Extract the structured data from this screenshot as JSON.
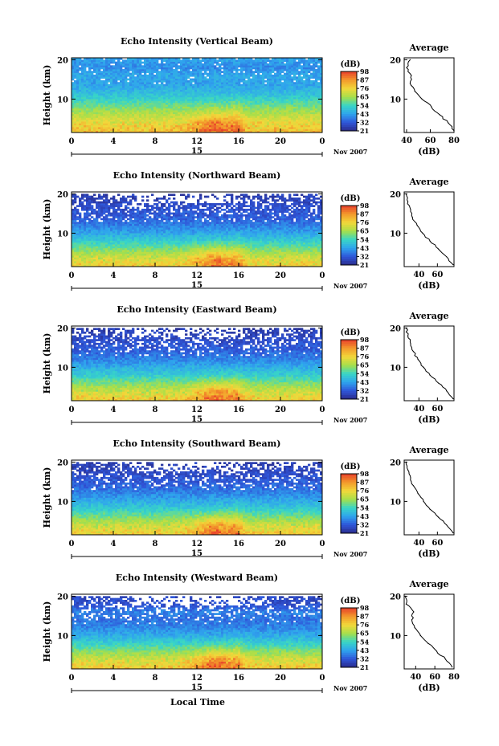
{
  "figure": {
    "xaxis_title": "Local Time",
    "date_label": "Nov 2007",
    "colorbar_unit": "(dB)",
    "average_title": "Average",
    "average_xlabel": "(dB)"
  },
  "chart_data": [
    {
      "type": "heatmap",
      "title": "Echo Intensity (Vertical Beam)",
      "ylabel": "Height (km)",
      "xlabel": "",
      "x_ticks": [
        "0",
        "4",
        "8",
        "12",
        "16",
        "20",
        "0"
      ],
      "day_marker": "15",
      "xlim": [
        0,
        24
      ],
      "ylim": [
        1.5,
        20.5
      ],
      "y_ticks": [
        10,
        20
      ],
      "colorbar": {
        "label": "(dB)",
        "ticks": [
          21,
          32,
          43,
          54,
          65,
          76,
          87,
          98
        ],
        "colors": [
          "#2a2c8a",
          "#2f55d9",
          "#2fa4ee",
          "#38d6c6",
          "#a6df4a",
          "#f2d83a",
          "#f39a2b",
          "#e8402a"
        ]
      },
      "profile": {
        "title": "Average",
        "xlabel": "(dB)",
        "xlim": [
          38,
          80
        ],
        "x_ticks": [
          40,
          60,
          80
        ],
        "heights": [
          2,
          4,
          6,
          8,
          10,
          12,
          14,
          16,
          18,
          20
        ],
        "values": [
          80,
          75,
          68,
          61,
          53,
          47,
          43,
          44,
          40,
          43
        ]
      }
    },
    {
      "type": "heatmap",
      "title": "Echo Intensity (Northward Beam)",
      "ylabel": "Height (km)",
      "xlabel": "",
      "x_ticks": [
        "0",
        "4",
        "8",
        "12",
        "16",
        "20",
        "0"
      ],
      "day_marker": "15",
      "xlim": [
        0,
        24
      ],
      "ylim": [
        1.5,
        20.5
      ],
      "y_ticks": [
        10,
        20
      ],
      "colorbar": {
        "label": "(dB)",
        "ticks": [
          21,
          32,
          43,
          54,
          65,
          76,
          87,
          98
        ],
        "colors": [
          "#2a2c8a",
          "#2f55d9",
          "#2fa4ee",
          "#38d6c6",
          "#a6df4a",
          "#f2d83a",
          "#f39a2b",
          "#e8402a"
        ]
      },
      "profile": {
        "title": "Average",
        "xlabel": "(dB)",
        "xlim": [
          24,
          78
        ],
        "x_ticks": [
          40,
          60
        ],
        "heights": [
          2,
          4,
          6,
          8,
          10,
          12,
          14,
          16,
          18,
          20
        ],
        "values": [
          77,
          70,
          61,
          52,
          44,
          38,
          33,
          31,
          28,
          26
        ]
      }
    },
    {
      "type": "heatmap",
      "title": "Echo Intensity (Eastward Beam)",
      "ylabel": "Height (km)",
      "xlabel": "",
      "x_ticks": [
        "0",
        "4",
        "8",
        "12",
        "16",
        "20",
        "0"
      ],
      "day_marker": "15",
      "xlim": [
        0,
        24
      ],
      "ylim": [
        1.5,
        20.5
      ],
      "y_ticks": [
        10,
        20
      ],
      "colorbar": {
        "label": "(dB)",
        "ticks": [
          21,
          32,
          43,
          54,
          65,
          76,
          87,
          98
        ],
        "colors": [
          "#2a2c8a",
          "#2f55d9",
          "#2fa4ee",
          "#38d6c6",
          "#a6df4a",
          "#f2d83a",
          "#f39a2b",
          "#e8402a"
        ]
      },
      "profile": {
        "title": "Average",
        "xlabel": "(dB)",
        "xlim": [
          24,
          78
        ],
        "x_ticks": [
          40,
          60
        ],
        "heights": [
          2,
          4,
          6,
          8,
          10,
          12,
          14,
          16,
          18,
          20
        ],
        "values": [
          77,
          70,
          61,
          52,
          45,
          39,
          34,
          31,
          28,
          26
        ]
      }
    },
    {
      "type": "heatmap",
      "title": "Echo Intensity (Southward Beam)",
      "ylabel": "Height (km)",
      "xlabel": "",
      "x_ticks": [
        "0",
        "4",
        "8",
        "12",
        "16",
        "20",
        "0"
      ],
      "day_marker": "15",
      "xlim": [
        0,
        24
      ],
      "ylim": [
        1.5,
        20.5
      ],
      "y_ticks": [
        10,
        20
      ],
      "colorbar": {
        "label": "(dB)",
        "ticks": [
          21,
          32,
          43,
          54,
          65,
          76,
          87,
          98
        ],
        "colors": [
          "#2a2c8a",
          "#2f55d9",
          "#2fa4ee",
          "#38d6c6",
          "#a6df4a",
          "#f2d83a",
          "#f39a2b",
          "#e8402a"
        ]
      },
      "profile": {
        "title": "Average",
        "xlabel": "(dB)",
        "xlim": [
          24,
          78
        ],
        "x_ticks": [
          40,
          60
        ],
        "heights": [
          2,
          4,
          6,
          8,
          10,
          12,
          14,
          16,
          18,
          20
        ],
        "values": [
          77,
          70,
          61,
          52,
          45,
          39,
          34,
          31,
          28,
          26
        ]
      }
    },
    {
      "type": "heatmap",
      "title": "Echo Intensity (Westward Beam)",
      "ylabel": "Height (km)",
      "xlabel": "Local Time",
      "x_ticks": [
        "0",
        "4",
        "8",
        "12",
        "16",
        "20",
        "0"
      ],
      "day_marker": "15",
      "xlim": [
        0,
        24
      ],
      "ylim": [
        1.5,
        20.5
      ],
      "y_ticks": [
        10,
        20
      ],
      "colorbar": {
        "label": "(dB)",
        "ticks": [
          21,
          32,
          43,
          54,
          65,
          76,
          87,
          98
        ],
        "colors": [
          "#2a2c8a",
          "#2f55d9",
          "#2fa4ee",
          "#38d6c6",
          "#a6df4a",
          "#f2d83a",
          "#f39a2b",
          "#e8402a"
        ]
      },
      "profile": {
        "title": "Average",
        "xlabel": "(dB)",
        "xlim": [
          28,
          80
        ],
        "x_ticks": [
          40,
          60,
          80
        ],
        "heights": [
          2,
          4,
          6,
          8,
          10,
          12,
          14,
          16,
          18,
          20
        ],
        "values": [
          78,
          71,
          62,
          53,
          45,
          39,
          36,
          38,
          30,
          29
        ]
      }
    }
  ]
}
